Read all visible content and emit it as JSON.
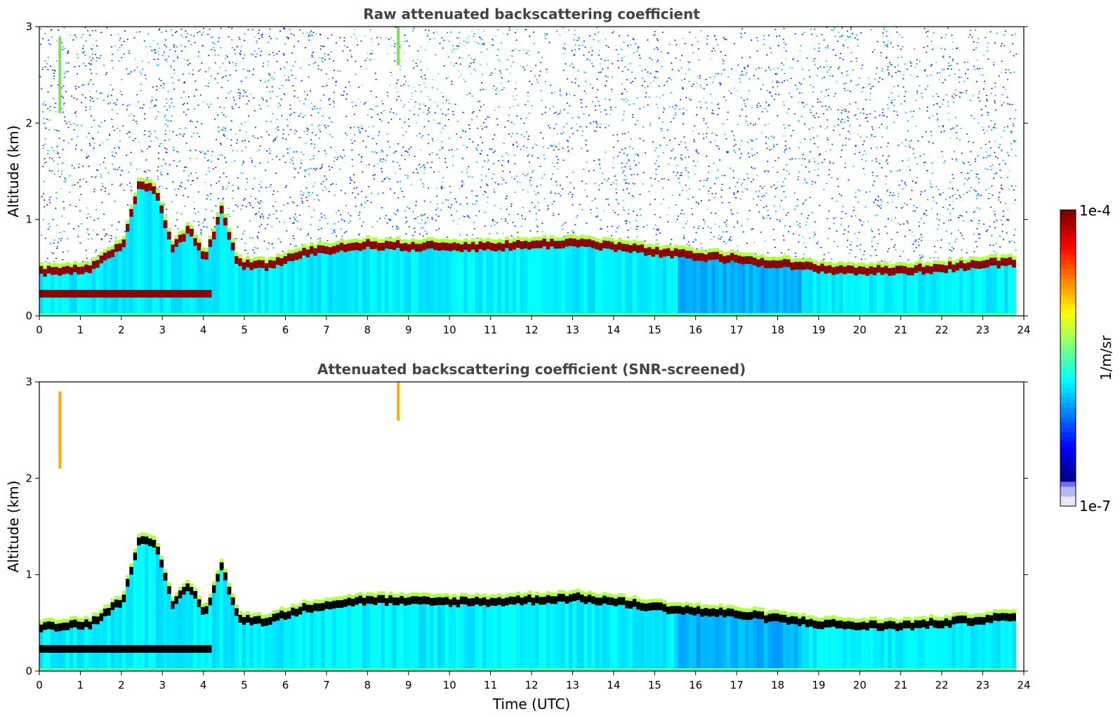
{
  "chart_data": [
    {
      "type": "heatmap",
      "title": "Raw attenuated backscattering coefficient",
      "xlabel": "",
      "ylabel": "Altitude (km)",
      "xlim": [
        0,
        24
      ],
      "ylim": [
        0,
        3
      ],
      "xticks": [
        "0",
        "1",
        "2",
        "3",
        "4",
        "5",
        "6",
        "7",
        "8",
        "9",
        "10",
        "11",
        "12",
        "13",
        "14",
        "15",
        "16",
        "17",
        "18",
        "19",
        "20",
        "21",
        "22",
        "23",
        "24"
      ],
      "yticks": [
        "0",
        "1",
        "2",
        "3"
      ],
      "data_end_x": 23.8,
      "screened": false,
      "colormap": "jet",
      "layers": {
        "boundary_layer_top_km": [
          [
            0,
            0.52
          ],
          [
            1.2,
            0.55
          ],
          [
            2,
            0.8
          ],
          [
            2.4,
            1.45
          ],
          [
            2.8,
            1.35
          ],
          [
            3.2,
            0.75
          ],
          [
            3.6,
            0.95
          ],
          [
            4,
            0.65
          ],
          [
            4.4,
            1.15
          ],
          [
            4.8,
            0.6
          ],
          [
            5.5,
            0.58
          ],
          [
            6.5,
            0.72
          ],
          [
            7,
            0.75
          ],
          [
            8,
            0.8
          ],
          [
            9,
            0.78
          ],
          [
            10,
            0.78
          ],
          [
            11,
            0.78
          ],
          [
            12,
            0.8
          ],
          [
            13,
            0.82
          ],
          [
            14,
            0.78
          ],
          [
            15,
            0.72
          ],
          [
            16,
            0.68
          ],
          [
            17,
            0.65
          ],
          [
            18,
            0.6
          ],
          [
            19,
            0.55
          ],
          [
            20,
            0.53
          ],
          [
            21,
            0.53
          ],
          [
            22,
            0.56
          ],
          [
            23,
            0.6
          ],
          [
            23.8,
            0.62
          ]
        ],
        "low_aerosol_layer": {
          "x_range": [
            0,
            4.2
          ],
          "altitude_km": 0.23
        },
        "high_signal_plumes": [
          {
            "x": 0.5,
            "altitude_range_km": [
              2.1,
              2.9
            ]
          },
          {
            "x": 8.75,
            "altitude_range_km": [
              2.6,
              3.0
            ]
          }
        ]
      }
    },
    {
      "type": "heatmap",
      "title": "Attenuated backscattering coefficient (SNR-screened)",
      "xlabel": "Time (UTC)",
      "ylabel": "Altitude (km)",
      "xlim": [
        0,
        24
      ],
      "ylim": [
        0,
        3
      ],
      "xticks": [
        "0",
        "1",
        "2",
        "3",
        "4",
        "5",
        "6",
        "7",
        "8",
        "9",
        "10",
        "11",
        "12",
        "13",
        "14",
        "15",
        "16",
        "17",
        "18",
        "19",
        "20",
        "21",
        "22",
        "23",
        "24"
      ],
      "yticks": [
        "0",
        "1",
        "2",
        "3"
      ],
      "data_end_x": 23.8,
      "screened": true,
      "colormap": "jet"
    }
  ],
  "colorbar": {
    "max_label": "1e-4",
    "min_label": "1e-7",
    "label": "1/m/sr",
    "colors": [
      "#e8e8f8",
      "#b8b8f0",
      "#7070f0",
      "#0000ff",
      "#0050ff",
      "#00a0ff",
      "#00e0f0",
      "#40ffb0",
      "#a0ff50",
      "#ffe000",
      "#ff8000",
      "#ff2000",
      "#c00000",
      "#800000"
    ]
  },
  "colors": {
    "background_noise": "#0a2cff",
    "boundary_layer_core": "#8b0000",
    "screened_saturated": "#000000",
    "title_text": "#444444"
  }
}
